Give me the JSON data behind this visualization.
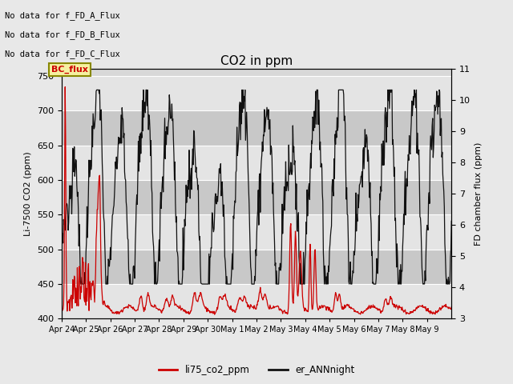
{
  "title": "CO2 in ppm",
  "ylabel_left": "Li-7500 CO2 (ppm)",
  "ylabel_right": "FD chamber flux (ppm)",
  "ylim_left": [
    400,
    760
  ],
  "ylim_right": [
    3.0,
    11.0
  ],
  "yticks_left": [
    400,
    450,
    500,
    550,
    600,
    650,
    700,
    750
  ],
  "yticks_right": [
    3.0,
    4.0,
    5.0,
    6.0,
    7.0,
    8.0,
    9.0,
    10.0,
    11.0
  ],
  "bg_color": "#e8e8e8",
  "plot_bg_color": "#d8d8d8",
  "stripe_light": "#e4e4e4",
  "stripe_dark": "#c8c8c8",
  "text_annotations": [
    "No data for f_FD_A_Flux",
    "No data for f_FD_B_Flux",
    "No data for f_FD_C_Flux"
  ],
  "legend_box_label": "BC_flux",
  "legend_box_color": "#f5f0a0",
  "legend_box_edge": "#888800",
  "legend_box_text_color": "#cc0000",
  "line1_color": "#cc0000",
  "line1_label": "li75_co2_ppm",
  "line2_color": "#111111",
  "line2_label": "er_ANNnight",
  "xticklabels": [
    "Apr 24",
    "Apr 25",
    "Apr 26",
    "Apr 27",
    "Apr 28",
    "Apr 29",
    "Apr 30",
    "May 1",
    "May 2",
    "May 3",
    "May 4",
    "May 5",
    "May 6",
    "May 7",
    "May 8",
    "May 9"
  ],
  "figsize": [
    6.4,
    4.8
  ],
  "dpi": 100
}
